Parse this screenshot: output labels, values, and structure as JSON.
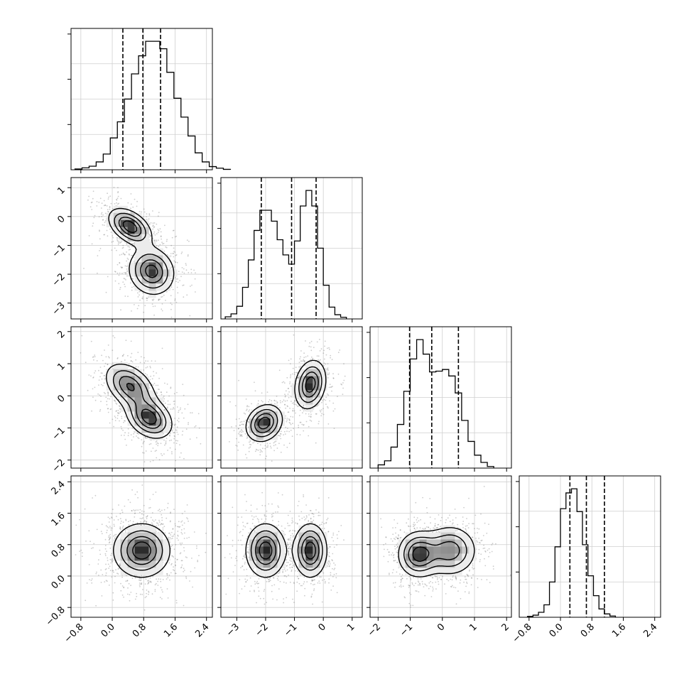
{
  "chart_data": {
    "type": "corner",
    "n_params": 4,
    "grid": true,
    "params": [
      {
        "range": [
          -1.05,
          2.55
        ],
        "ticks": [
          -0.8,
          0.0,
          0.8,
          1.6,
          2.4
        ],
        "tick_labels": [
          "−0.8",
          "0.0",
          "0.8",
          "1.6",
          "2.4"
        ],
        "quantiles": [
          0.27,
          0.78,
          1.23
        ],
        "hist_edges_start": -0.95,
        "hist_bin_width": 0.18,
        "hist_counts": [
          2,
          5,
          9,
          20,
          40,
          81,
          122,
          180,
          244,
          290,
          327,
          327,
          308,
          248,
          182,
          134,
          86,
          43,
          20,
          8,
          4,
          1
        ]
      },
      {
        "range": [
          -3.55,
          1.35
        ],
        "ticks": [
          -3,
          -2,
          -1,
          0,
          1
        ],
        "tick_labels": [
          "−3",
          "−2",
          "−1",
          "0",
          "1"
        ],
        "quantiles": [
          -2.15,
          -1.1,
          -0.25
        ],
        "hist_edges_start": -3.4,
        "hist_bin_width": 0.2,
        "hist_counts": [
          5,
          12,
          30,
          75,
          140,
          210,
          258,
          258,
          232,
          188,
          152,
          130,
          185,
          268,
          305,
          268,
          168,
          80,
          28,
          10,
          4
        ]
      },
      {
        "range": [
          -2.25,
          2.15
        ],
        "ticks": [
          -2,
          -1,
          0,
          1,
          2
        ],
        "tick_labels": [
          "−2",
          "−1",
          "0",
          "1",
          "2"
        ],
        "quantiles": [
          -1.02,
          -0.33,
          0.5
        ],
        "hist_edges_start": -2.0,
        "hist_bin_width": 0.2,
        "hist_counts": [
          8,
          18,
          52,
          108,
          190,
          270,
          318,
          282,
          238,
          240,
          244,
          228,
          186,
          118,
          66,
          32,
          14,
          4
        ]
      },
      {
        "range": [
          -1.05,
          2.55
        ],
        "ticks": [
          -0.8,
          0.0,
          0.8,
          1.6,
          2.4
        ],
        "tick_labels": [
          "−0.8",
          "0.0",
          "0.8",
          "1.6",
          "2.4"
        ],
        "quantiles": [
          0.24,
          0.66,
          1.12
        ],
        "hist_edges_start": -0.84,
        "hist_bin_width": 0.14,
        "hist_counts": [
          2,
          5,
          12,
          30,
          85,
          170,
          262,
          300,
          310,
          255,
          175,
          100,
          52,
          20,
          8,
          3
        ]
      }
    ],
    "blobs": {
      "1_0": [
        {
          "mx": 0.45,
          "my": -0.35,
          "sx": 0.3,
          "sy": 0.35,
          "r": -0.45,
          "w": 1.0
        },
        {
          "mx": 1.0,
          "my": -1.9,
          "sx": 0.32,
          "sy": 0.45,
          "r": -0.1,
          "w": 0.95
        }
      ],
      "2_0": [
        {
          "mx": 0.45,
          "my": 0.3,
          "sx": 0.35,
          "sy": 0.4,
          "r": -0.4,
          "w": 0.9
        },
        {
          "mx": 0.95,
          "my": -0.7,
          "sx": 0.32,
          "sy": 0.35,
          "r": -0.3,
          "w": 1.0
        }
      ],
      "2_1": [
        {
          "mx": -2.05,
          "my": -0.85,
          "sx": 0.35,
          "sy": 0.32,
          "r": 0.2,
          "w": 1.0
        },
        {
          "mx": -0.45,
          "my": 0.35,
          "sx": 0.3,
          "sy": 0.42,
          "r": 0.2,
          "w": 1.0
        }
      ],
      "3_0": [
        {
          "mx": 0.75,
          "my": 0.65,
          "sx": 0.4,
          "sy": 0.38,
          "r": 0.0,
          "w": 1.0
        }
      ],
      "3_1": [
        {
          "mx": -2.0,
          "my": 0.65,
          "sx": 0.38,
          "sy": 0.38,
          "r": 0.0,
          "w": 1.0
        },
        {
          "mx": -0.45,
          "my": 0.65,
          "sx": 0.32,
          "sy": 0.38,
          "r": 0.0,
          "w": 1.0
        }
      ],
      "3_2": [
        {
          "mx": -0.75,
          "my": 0.55,
          "sx": 0.35,
          "sy": 0.32,
          "r": 0.0,
          "w": 1.0
        },
        {
          "mx": 0.25,
          "my": 0.65,
          "sx": 0.45,
          "sy": 0.35,
          "r": 0.0,
          "w": 0.85
        }
      ]
    },
    "contour_levels": [
      0.2,
      0.42,
      0.65,
      0.85
    ]
  }
}
